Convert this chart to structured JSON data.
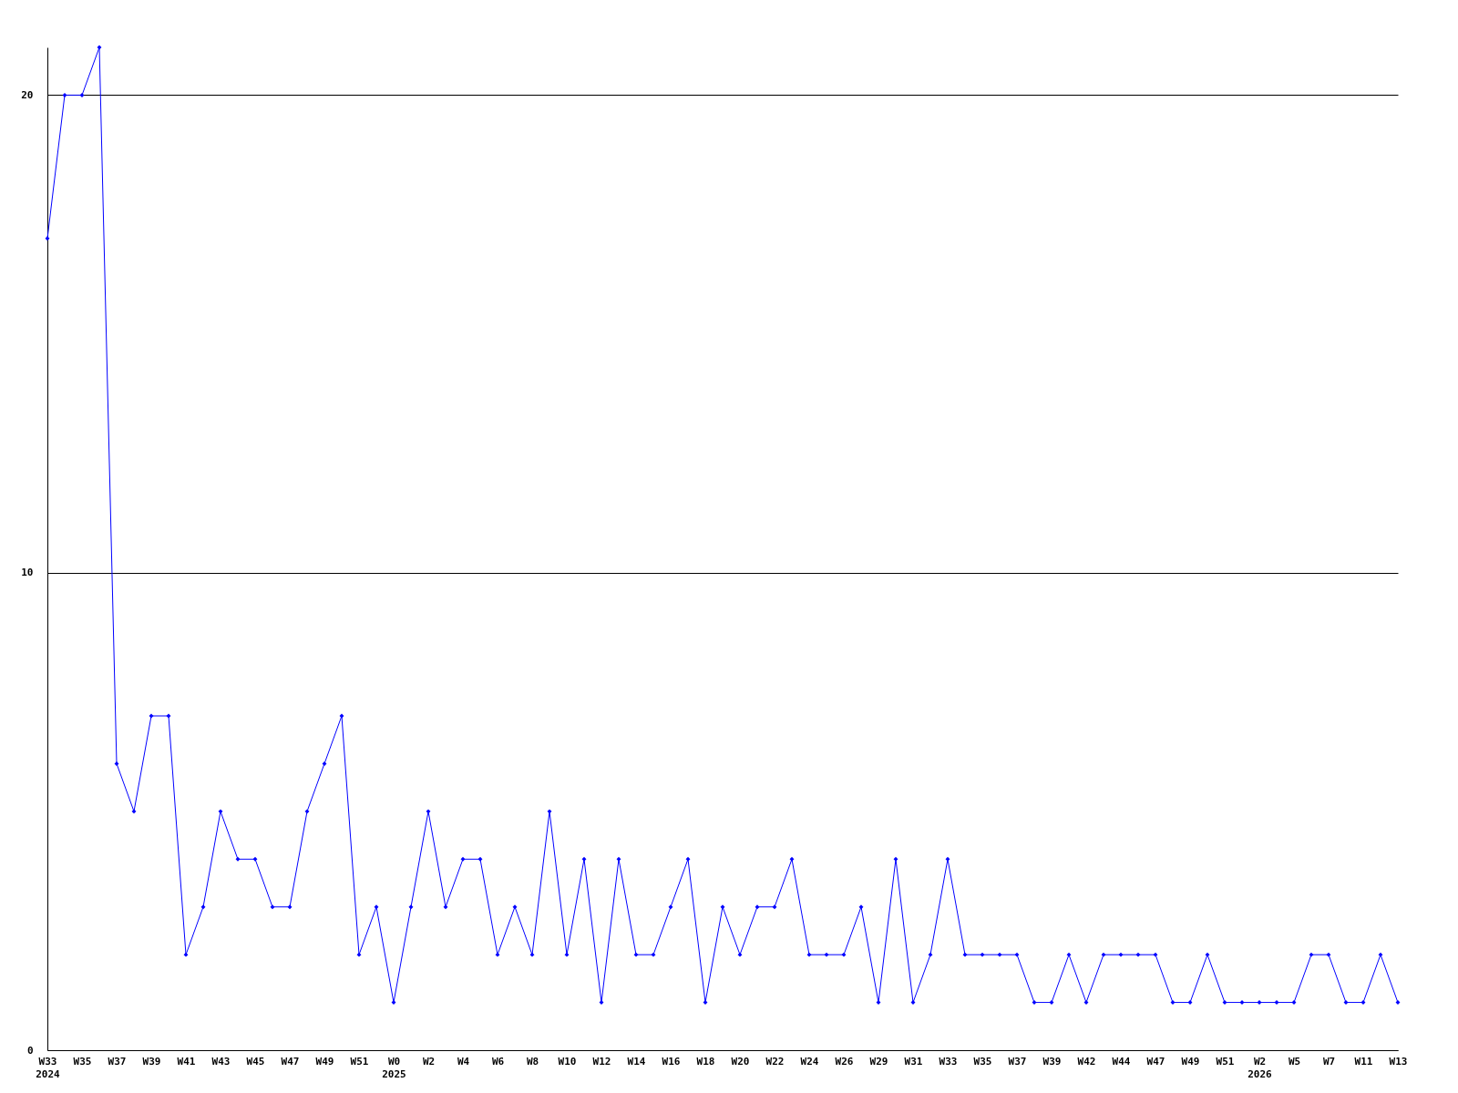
{
  "chart_data": {
    "type": "line",
    "categories": [
      "W33\n2024",
      null,
      "W35",
      null,
      "W37",
      null,
      "W39",
      null,
      "W41",
      null,
      "W43",
      null,
      "W45",
      null,
      "W47",
      null,
      "W49",
      null,
      "W51",
      null,
      "W0\n2025",
      null,
      "W2",
      null,
      "W4",
      null,
      "W6",
      null,
      "W8",
      null,
      "W10",
      null,
      "W12",
      null,
      "W14",
      null,
      "W16",
      null,
      "W18",
      null,
      "W20",
      null,
      "W22",
      null,
      "W24",
      null,
      "W26",
      null,
      "W29",
      null,
      "W31",
      null,
      "W33",
      null,
      "W35",
      null,
      "W37",
      null,
      "W39",
      null,
      "W42",
      null,
      "W44",
      null,
      "W47",
      null,
      "W49",
      null,
      "W51",
      null,
      "W2\n2026",
      null,
      "W5",
      null,
      "W7",
      null,
      "W11",
      null,
      "W13"
    ],
    "series": [
      {
        "color": "#0000ff",
        "values": [
          17,
          20,
          20,
          21,
          6,
          5,
          7,
          7,
          2,
          3,
          5,
          4,
          4,
          3,
          3,
          5,
          6,
          7,
          2,
          3,
          1,
          3,
          5,
          3,
          4,
          4,
          2,
          3,
          2,
          5,
          2,
          4,
          1,
          4,
          2,
          2,
          3,
          4,
          1,
          3,
          2,
          3,
          3,
          4,
          2,
          2,
          2,
          3,
          1,
          4,
          1,
          2,
          4,
          2,
          2,
          2,
          2,
          1,
          1,
          2,
          1,
          2,
          2,
          2,
          2,
          1,
          1,
          2,
          1,
          1,
          1,
          1,
          1,
          2,
          2,
          1,
          1,
          2,
          1
        ]
      }
    ],
    "ylim": [
      0,
      21
    ],
    "yticks": [
      0,
      10,
      20
    ],
    "grid": "y",
    "marker": "diamond",
    "line_style": "solid"
  }
}
